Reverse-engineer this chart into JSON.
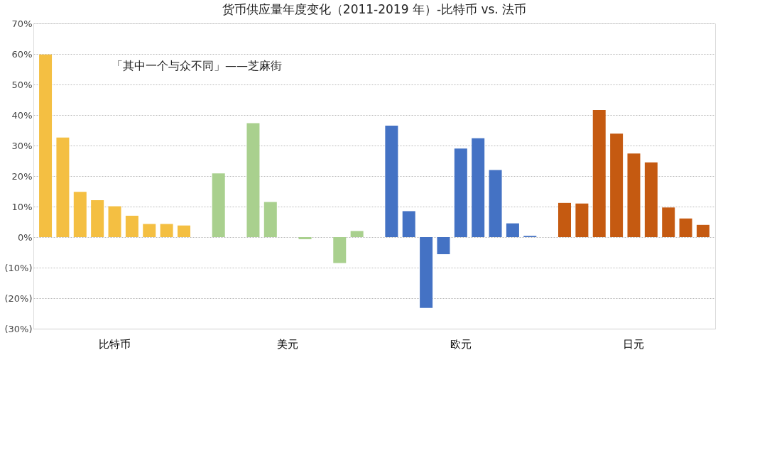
{
  "chart_data": {
    "type": "bar",
    "title": "货币供应量年度变化（2011-2019 年）-比特币 vs. 法币",
    "categories": [
      "比特币",
      "美元",
      "欧元",
      "日元"
    ],
    "series": [
      {
        "colors": [
          "#f4bf42",
          "#a9d08e",
          "#4472c4",
          "#c55a11"
        ],
        "values": [
          59.8,
          20.9,
          36.5,
          11.2
        ]
      },
      {
        "colors": [
          "#f4bf42",
          "#a9d08e",
          "#4472c4",
          "#c55a11"
        ],
        "values": [
          32.6,
          null,
          8.5,
          11
        ]
      },
      {
        "colors": [
          "#f4bf42",
          "#a9d08e",
          "#4472c4",
          "#c55a11"
        ],
        "values": [
          14.8,
          37.3,
          -23.2,
          41.6
        ]
      },
      {
        "colors": [
          "#f4bf42",
          "#a9d08e",
          "#4472c4",
          "#c55a11"
        ],
        "values": [
          12.1,
          11.5,
          -5.6,
          33.9
        ]
      },
      {
        "colors": [
          "#f4bf42",
          "#a9d08e",
          "#4472c4",
          "#c55a11"
        ],
        "values": [
          10.1,
          null,
          29,
          27.4
        ]
      },
      {
        "colors": [
          "#f4bf42",
          "#a9d08e",
          "#4472c4",
          "#c55a11"
        ],
        "values": [
          7,
          -0.7,
          32.4,
          24.5
        ]
      },
      {
        "colors": [
          "#f4bf42",
          "#a9d08e",
          "#4472c4",
          "#c55a11"
        ],
        "values": [
          4.3,
          null,
          22,
          9.7
        ]
      },
      {
        "colors": [
          "#f4bf42",
          "#a9d08e",
          "#4472c4",
          "#c55a11"
        ],
        "values": [
          4.3,
          -8.5,
          4.5,
          6.1
        ]
      },
      {
        "colors": [
          "#f4bf42",
          "#a9d08e",
          "#4472c4",
          "#c55a11"
        ],
        "values": [
          3.8,
          2,
          0.4,
          4
        ]
      }
    ],
    "ylim": [
      -30,
      70
    ],
    "yticks": [
      {
        "value": -30,
        "label": "(30%)"
      },
      {
        "value": -20,
        "label": "(20%)"
      },
      {
        "value": -10,
        "label": "(10%)"
      },
      {
        "value": 0,
        "label": "0%"
      },
      {
        "value": 10,
        "label": "10%"
      },
      {
        "value": 20,
        "label": "20%"
      },
      {
        "value": 30,
        "label": "30%"
      },
      {
        "value": 40,
        "label": "40%"
      },
      {
        "value": 50,
        "label": "50%"
      },
      {
        "value": 60,
        "label": "60%"
      },
      {
        "value": 70,
        "label": "70%"
      }
    ],
    "grid": "y",
    "annotations": [
      "「其中一个与众不同」——芝麻街"
    ]
  }
}
